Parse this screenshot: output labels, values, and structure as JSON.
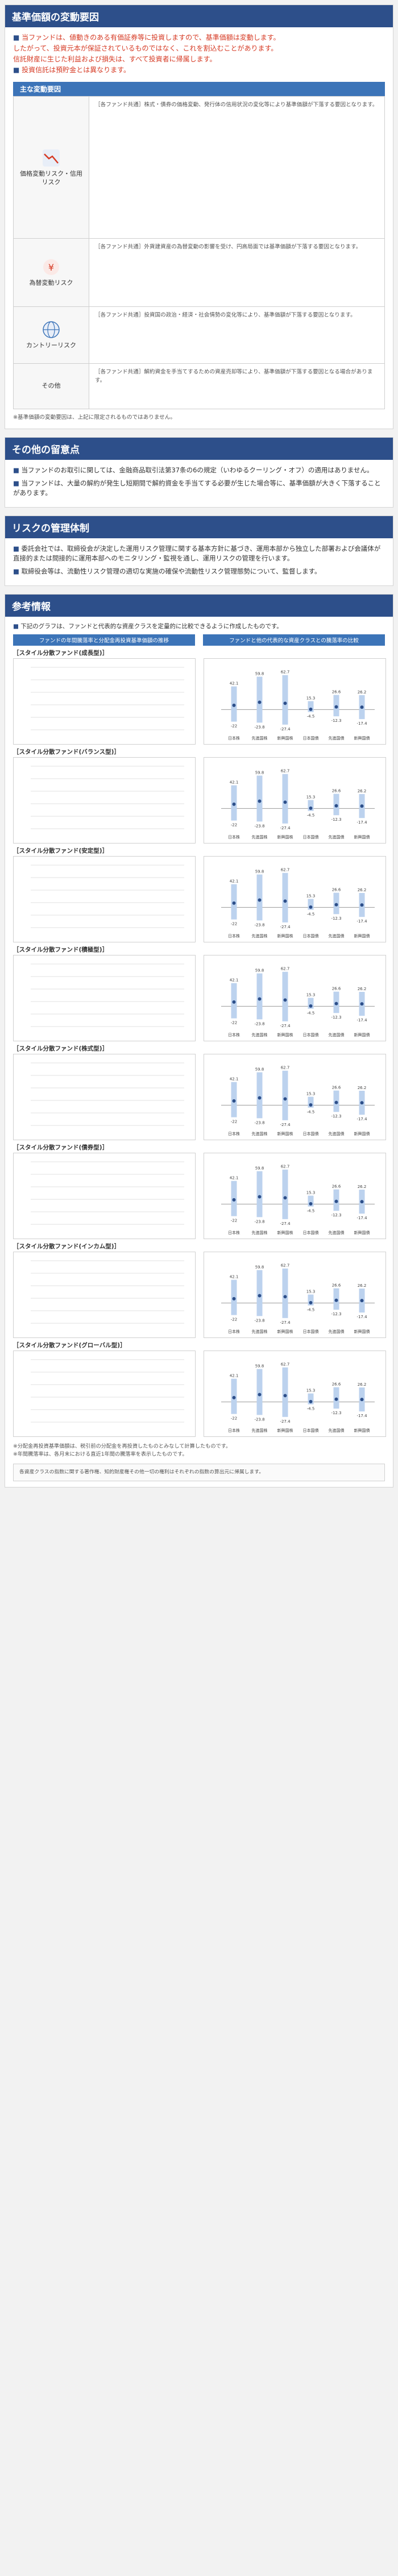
{
  "section1": {
    "title": "基準価額の変動要因",
    "lead": [
      "当ファンドは、値動きのある有価証券等に投資しますので、基準価額は変動します。",
      "したがって、投資元本が保証されているものではなく、これを割込むことがあります。",
      "信託財産に生じた利益および損失は、すべて投資者に帰属します。",
      "投資信託は預貯金とは異なります。"
    ],
    "risks_header": "主な変動要因",
    "risks": [
      {
        "name": "価格変動リスク・信用リスク",
        "icon": "chart-down-icon",
        "desc": "［各ファンド共通］株式・債券の価格変動、発行体の信用状況の変化等により基準価額が下落する要因となります。"
      },
      {
        "name": "為替変動リスク",
        "icon": "currency-icon",
        "desc": "［各ファンド共通］外貨建資産の為替変動の影響を受け、円高局面では基準価額が下落する要因となります。"
      },
      {
        "name": "カントリーリスク",
        "icon": "globe-icon",
        "desc": "［各ファンド共通］投資国の政治・経済・社会情勢の変化等により、基準価額が下落する要因となります。"
      },
      {
        "name": "その他",
        "icon": "",
        "desc": "［各ファンド共通］解約資金を手当てするための資産売却等により、基準価額が下落する要因となる場合があります。"
      }
    ],
    "risk_note": "※基準価額の変動要因は、上記に限定されるものではありません。"
  },
  "section2": {
    "title": "その他の留意点",
    "paras": [
      "当ファンドのお取引に関しては、金融商品取引法第37条の6の規定（いわゆるクーリング・オフ）の適用はありません。",
      "当ファンドは、大量の解約が発生し短期間で解約資金を手当てする必要が生じた場合等に、基準価額が大きく下落することがあります。"
    ]
  },
  "section3": {
    "title": "リスクの管理体制",
    "paras": [
      "委託会社では、取締役会が決定した運用リスク管理に関する基本方針に基づき、運用本部から独立した部署および会議体が直接的または間接的に運用本部へのモニタリング・監視を通し、運用リスクの管理を行います。",
      "取締役会等は、流動性リスク管理の適切な実施の確保や流動性リスク管理態勢について、監督します。"
    ]
  },
  "section4": {
    "title": "参考情報",
    "intro": "下記のグラフは、ファンドと代表的な資産クラスを定量的に比較できるように作成したものです。",
    "left_head": "ファンドの年間騰落率と分配金再投資基準価額の推移",
    "right_head": "ファンドと他の代表的な資産クラスとの騰落率の比較",
    "funds": [
      "［スタイル分散ファンド(成長型)］",
      "［スタイル分散ファンド(バランス型)］",
      "［スタイル分散ファンド(安定型)］",
      "［スタイル分散ファンド(積極型)］",
      "［スタイル分散ファンド(株式型)］",
      "［スタイル分散ファンド(債券型)］",
      "［スタイル分散ファンド(インカム型)］",
      "［スタイル分散ファンド(グローバル型)］"
    ],
    "footnotes": [
      "※分配金再投資基準価額は、税引前の分配金を再投資したものとみなして計算したものです。",
      "※年間騰落率は、各月末における直近1年間の騰落率を表示したものです。"
    ],
    "disclaimer": "各資産クラスの指数に関する著作権、知的財産権その他一切の権利はそれぞれの指数の算出元に帰属します。"
  },
  "chart_data": [
    {
      "type": "bar",
      "categories": [
        "日本株",
        "先進国株",
        "新興国株",
        "日本国債",
        "先進国債",
        "新興国債"
      ],
      "series": [
        {
          "name": "最大値",
          "values": [
            42.1,
            59.8,
            62.7,
            15.3,
            26.6,
            26.2
          ]
        },
        {
          "name": "平均値",
          "values": [
            7.7,
            13.3,
            11.4,
            0.5,
            4.9,
            4.3
          ]
        },
        {
          "name": "最小値",
          "values": [
            -22.0,
            -23.8,
            -27.4,
            -4.5,
            -12.3,
            -17.4
          ]
        }
      ]
    }
  ]
}
